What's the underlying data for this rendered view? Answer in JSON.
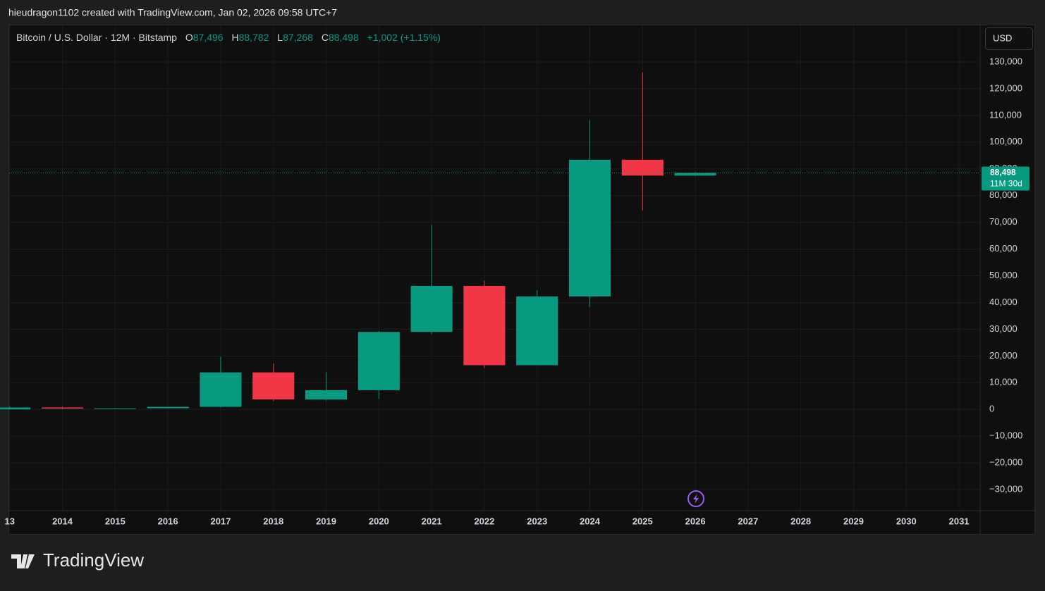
{
  "header": {
    "caption": "hieudragon1102 created with TradingView.com, Jan 02, 2026 09:58 UTC+7"
  },
  "currency_button": "USD",
  "brand": "TradingView",
  "legend": {
    "symbol": "Bitcoin / U.S. Dollar · 12M · Bitstamp",
    "open_label": "O",
    "open": "87,496",
    "high_label": "H",
    "high": "88,782",
    "low_label": "L",
    "low": "87,268",
    "close_label": "C",
    "close": "88,498",
    "change": "+1,002 (+1.15%)"
  },
  "chart_data": {
    "type": "candlestick",
    "x": [
      2013,
      2014,
      2015,
      2016,
      2017,
      2018,
      2019,
      2020,
      2021,
      2022,
      2023,
      2024,
      2025,
      2026
    ],
    "open": [
      13,
      732,
      314,
      430,
      964,
      13850,
      3690,
      7200,
      28990,
      46200,
      16550,
      42280,
      93400,
      87496
    ],
    "high": [
      1163,
      1000,
      500,
      980,
      19700,
      17150,
      13900,
      29300,
      69000,
      48190,
      44700,
      108200,
      126100,
      88782
    ],
    "low": [
      13,
      150,
      152,
      350,
      750,
      3150,
      3350,
      3900,
      28150,
      15500,
      16500,
      38400,
      74450,
      87268
    ],
    "close": [
      732,
      310,
      430,
      964,
      13850,
      3740,
      7200,
      28990,
      46200,
      16550,
      42280,
      93400,
      87496,
      88498
    ],
    "up_color": "#089981",
    "down_color": "#f23645",
    "xlim": [
      2012.99,
      2031.4
    ],
    "xticks": [
      {
        "value": 2013,
        "label": "13"
      },
      2014,
      2015,
      2016,
      2017,
      2018,
      2019,
      2020,
      2021,
      2022,
      2023,
      2024,
      2025,
      2026,
      2027,
      2028,
      2029,
      2030,
      2031
    ],
    "ylim": [
      -37900,
      143700
    ],
    "yticks": [
      {
        "value": -30000,
        "label": "−30,000"
      },
      {
        "value": -20000,
        "label": "−20,000"
      },
      {
        "value": -10000,
        "label": "−10,000"
      },
      0,
      {
        "value": 10000,
        "label": "10,000"
      },
      {
        "value": 20000,
        "label": "20,000"
      },
      {
        "value": 30000,
        "label": "30,000"
      },
      {
        "value": 40000,
        "label": "40,000"
      },
      {
        "value": 50000,
        "label": "50,000"
      },
      {
        "value": 60000,
        "label": "60,000"
      },
      {
        "value": 70000,
        "label": "70,000"
      },
      {
        "value": 80000,
        "label": "80,000"
      },
      {
        "value": 90000,
        "label": "90,000"
      },
      {
        "value": 100000,
        "label": "100,000"
      },
      {
        "value": 110000,
        "label": "110,000"
      },
      {
        "value": 120000,
        "label": "120,000"
      },
      {
        "value": 130000,
        "label": "130,000"
      }
    ],
    "grid": true,
    "last_price": {
      "value": 88498,
      "label": "88,498"
    },
    "countdown": "11M 30d"
  }
}
